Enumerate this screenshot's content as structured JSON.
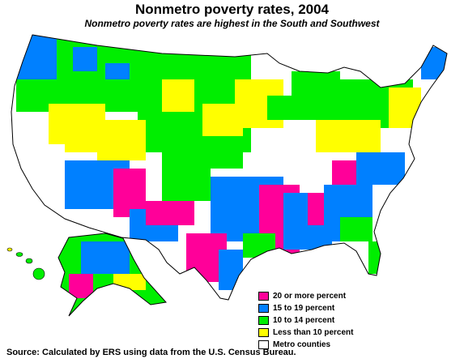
{
  "title": "Nonmetro poverty rates, 2004",
  "subtitle": "Nonmetro poverty rates are highest in the South and Southwest",
  "legend": [
    {
      "label": "20 or more percent",
      "color": "#ff0099"
    },
    {
      "label": "15 to 19 percent",
      "color": "#0080ff"
    },
    {
      "label": "10 to 14 percent",
      "color": "#00ee00"
    },
    {
      "label": "Less than 10 percent",
      "color": "#ffff00"
    },
    {
      "label": "Metro counties",
      "color": "#ffffff"
    }
  ],
  "source": "Source: Calculated by ERS using data from the U.S. Census Bureau."
}
